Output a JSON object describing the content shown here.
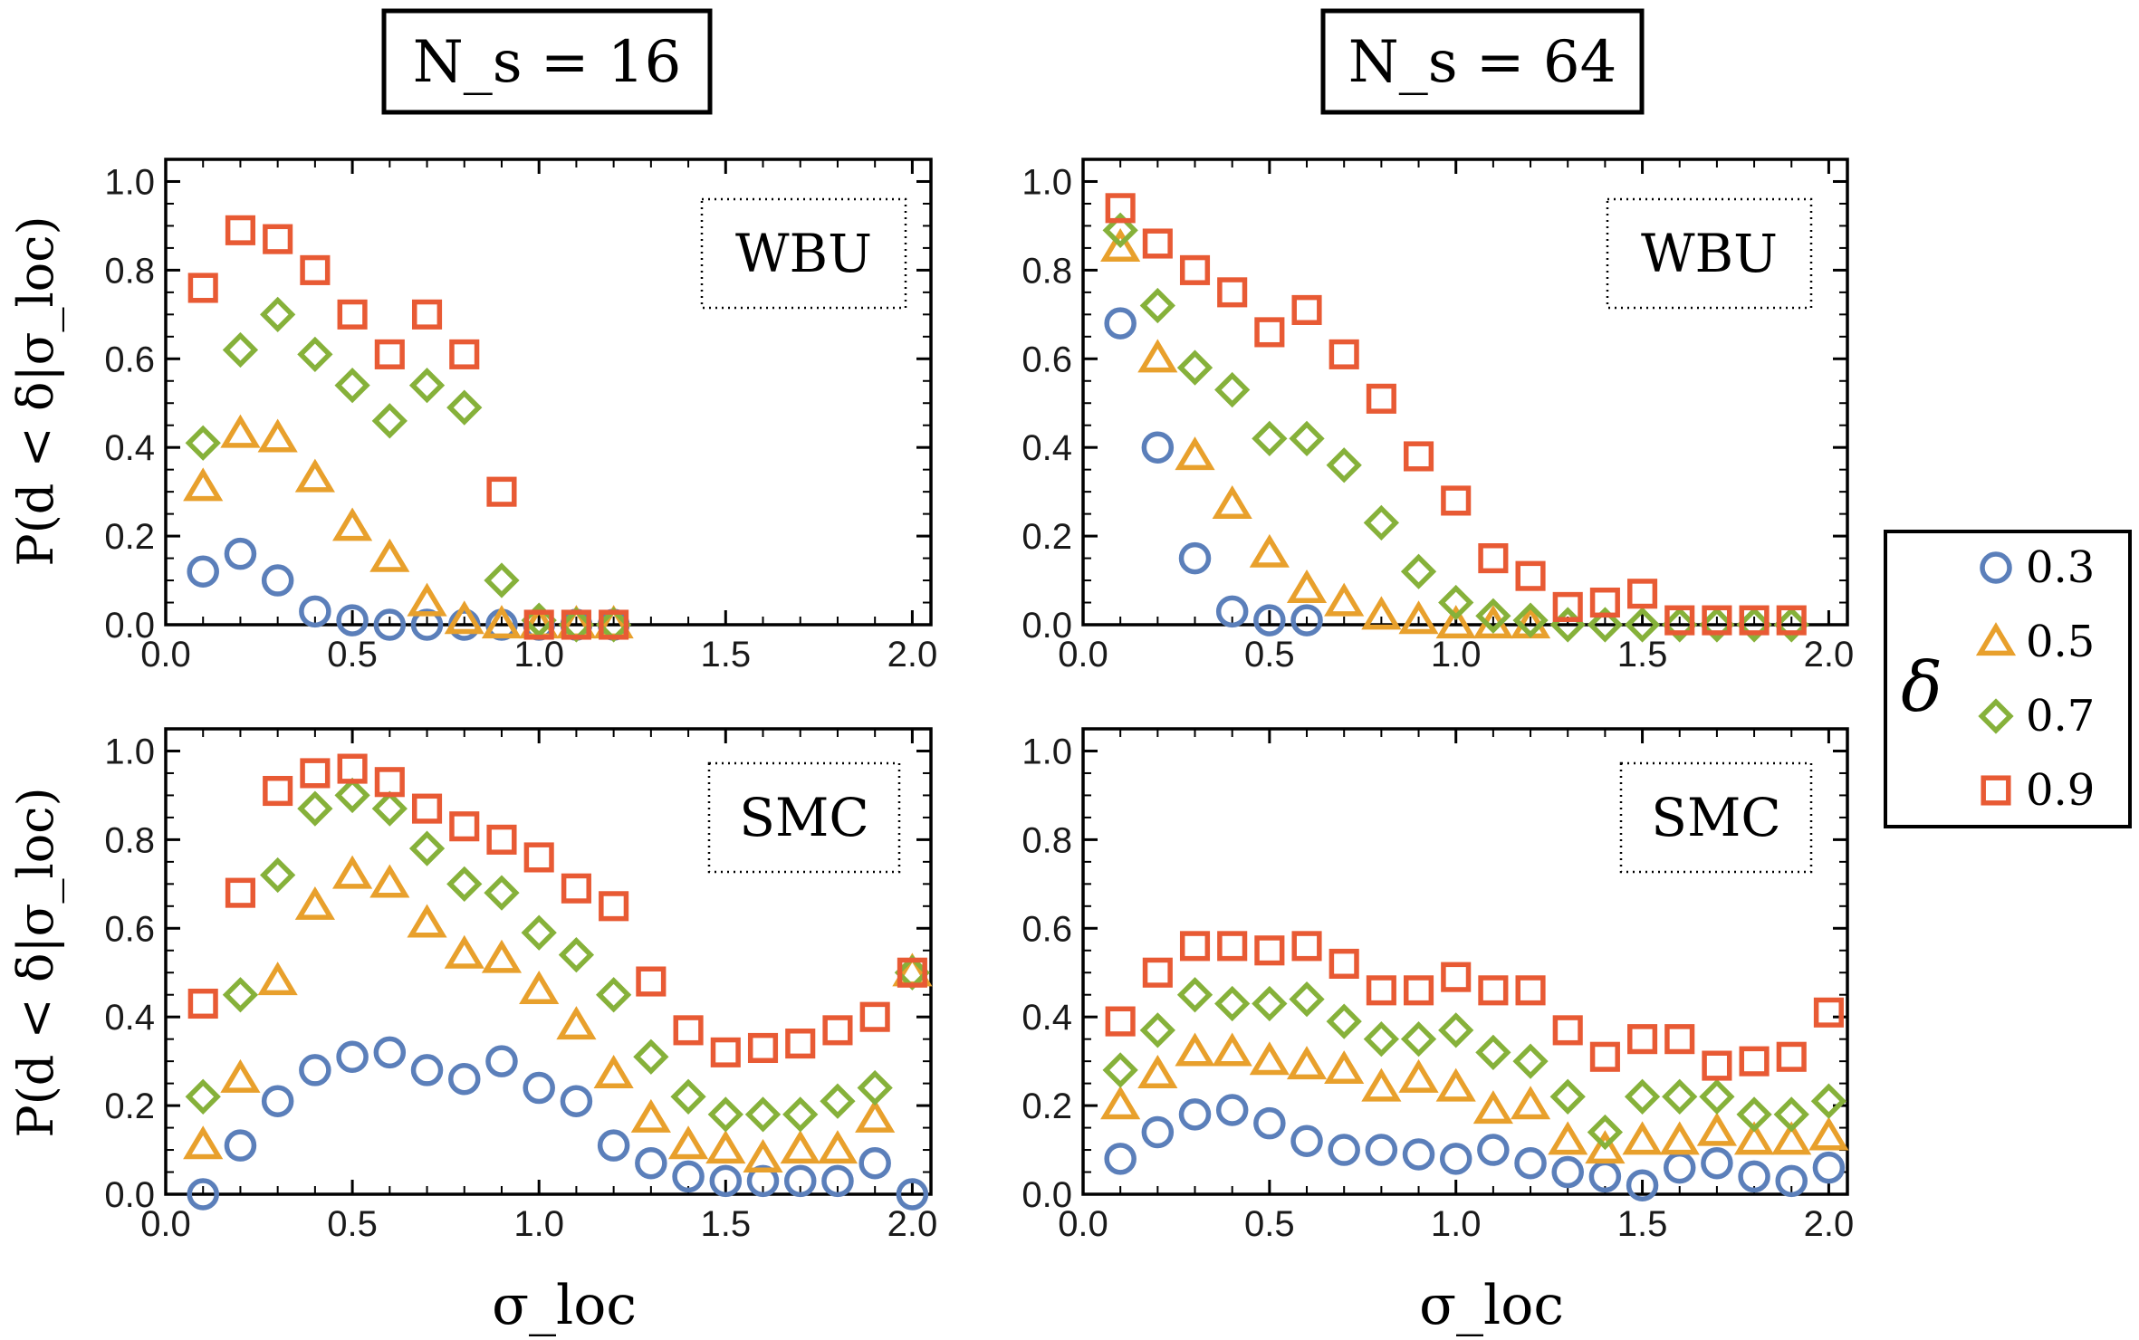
{
  "column_titles": [
    "N_s = 16",
    "N_s = 64"
  ],
  "ylabel": "P(d < δ|σ_loc)",
  "xlabel": "σ_loc",
  "legend": {
    "title": "δ",
    "entries": [
      {
        "label": "0.3",
        "color": "#5b7fba",
        "marker": "circle"
      },
      {
        "label": "0.5",
        "color": "#e8a02c",
        "marker": "triangle"
      },
      {
        "label": "0.7",
        "color": "#86b13a",
        "marker": "diamond"
      },
      {
        "label": "0.9",
        "color": "#e85a34",
        "marker": "square"
      }
    ]
  },
  "chart_data": [
    {
      "type": "scatter",
      "panel": "top-left",
      "column": "N_s = 16",
      "annotation": "WBU",
      "xlim": [
        0,
        2.05
      ],
      "ylim": [
        0,
        1.05
      ],
      "xticks": [
        "0.0",
        "0.5",
        "1.0",
        "1.5",
        "2.0"
      ],
      "yticks": [
        "0.0",
        "0.2",
        "0.4",
        "0.6",
        "0.8",
        "1.0"
      ],
      "series": [
        {
          "name": "0.3",
          "x": [
            0.1,
            0.2,
            0.3,
            0.4,
            0.5,
            0.6,
            0.7,
            0.8,
            0.9,
            1.0,
            1.1,
            1.2
          ],
          "y": [
            0.12,
            0.16,
            0.1,
            0.03,
            0.01,
            0.0,
            0.0,
            0.0,
            0.0,
            0.0,
            0.0,
            0.0
          ]
        },
        {
          "name": "0.5",
          "x": [
            0.1,
            0.2,
            0.3,
            0.4,
            0.5,
            0.6,
            0.7,
            0.8,
            0.9,
            1.0,
            1.1,
            1.2
          ],
          "y": [
            0.31,
            0.43,
            0.42,
            0.33,
            0.22,
            0.15,
            0.05,
            0.01,
            0.0,
            0.0,
            0.0,
            0.0
          ]
        },
        {
          "name": "0.7",
          "x": [
            0.1,
            0.2,
            0.3,
            0.4,
            0.5,
            0.6,
            0.7,
            0.8,
            0.9,
            1.0,
            1.1,
            1.2
          ],
          "y": [
            0.41,
            0.62,
            0.7,
            0.61,
            0.54,
            0.46,
            0.54,
            0.49,
            0.1,
            0.01,
            0.0,
            0.0
          ]
        },
        {
          "name": "0.9",
          "x": [
            0.1,
            0.2,
            0.3,
            0.4,
            0.5,
            0.6,
            0.7,
            0.8,
            0.9,
            1.0,
            1.1,
            1.2
          ],
          "y": [
            0.76,
            0.89,
            0.87,
            0.8,
            0.7,
            0.61,
            0.7,
            0.61,
            0.3,
            0.0,
            0.0,
            0.0
          ]
        }
      ]
    },
    {
      "type": "scatter",
      "panel": "top-right",
      "column": "N_s = 64",
      "annotation": "WBU",
      "xlim": [
        0,
        2.05
      ],
      "ylim": [
        0,
        1.05
      ],
      "xticks": [
        "0.0",
        "0.5",
        "1.0",
        "1.5",
        "2.0"
      ],
      "yticks": [
        "0.0",
        "0.2",
        "0.4",
        "0.6",
        "0.8",
        "1.0"
      ],
      "series": [
        {
          "name": "0.3",
          "x": [
            0.1,
            0.2,
            0.3,
            0.4,
            0.5,
            0.6
          ],
          "y": [
            0.68,
            0.4,
            0.15,
            0.03,
            0.01,
            0.01
          ]
        },
        {
          "name": "0.5",
          "x": [
            0.1,
            0.2,
            0.3,
            0.4,
            0.5,
            0.6,
            0.7,
            0.8,
            0.9,
            1.0,
            1.1,
            1.2
          ],
          "y": [
            0.85,
            0.6,
            0.38,
            0.27,
            0.16,
            0.08,
            0.05,
            0.02,
            0.01,
            0.0,
            0.0,
            0.0
          ]
        },
        {
          "name": "0.7",
          "x": [
            0.1,
            0.2,
            0.3,
            0.4,
            0.5,
            0.6,
            0.7,
            0.8,
            0.9,
            1.0,
            1.1,
            1.2,
            1.3,
            1.4,
            1.5,
            1.6,
            1.7,
            1.8,
            1.9
          ],
          "y": [
            0.89,
            0.72,
            0.58,
            0.53,
            0.42,
            0.42,
            0.36,
            0.23,
            0.12,
            0.05,
            0.02,
            0.01,
            0.0,
            0.0,
            0.0,
            0.0,
            0.0,
            0.0,
            0.0
          ]
        },
        {
          "name": "0.9",
          "x": [
            0.1,
            0.2,
            0.3,
            0.4,
            0.5,
            0.6,
            0.7,
            0.8,
            0.9,
            1.0,
            1.1,
            1.2,
            1.3,
            1.4,
            1.5,
            1.6,
            1.7,
            1.8,
            1.9
          ],
          "y": [
            0.94,
            0.86,
            0.8,
            0.75,
            0.66,
            0.71,
            0.61,
            0.51,
            0.38,
            0.28,
            0.15,
            0.11,
            0.04,
            0.05,
            0.07,
            0.01,
            0.01,
            0.01,
            0.01
          ]
        }
      ]
    },
    {
      "type": "scatter",
      "panel": "bottom-left",
      "column": "N_s = 16",
      "annotation": "SMC",
      "xlim": [
        0,
        2.05
      ],
      "ylim": [
        0,
        1.05
      ],
      "xticks": [
        "0.0",
        "0.5",
        "1.0",
        "1.5",
        "2.0"
      ],
      "yticks": [
        "0.0",
        "0.2",
        "0.4",
        "0.6",
        "0.8",
        "1.0"
      ],
      "series": [
        {
          "name": "0.3",
          "x": [
            0.1,
            0.2,
            0.3,
            0.4,
            0.5,
            0.6,
            0.7,
            0.8,
            0.9,
            1.0,
            1.1,
            1.2,
            1.3,
            1.4,
            1.5,
            1.6,
            1.7,
            1.8,
            1.9,
            2.0
          ],
          "y": [
            0.0,
            0.11,
            0.21,
            0.28,
            0.31,
            0.32,
            0.28,
            0.26,
            0.3,
            0.24,
            0.21,
            0.11,
            0.07,
            0.04,
            0.03,
            0.03,
            0.03,
            0.03,
            0.07,
            0.0
          ]
        },
        {
          "name": "0.5",
          "x": [
            0.1,
            0.2,
            0.3,
            0.4,
            0.5,
            0.6,
            0.7,
            0.8,
            0.9,
            1.0,
            1.1,
            1.2,
            1.3,
            1.4,
            1.5,
            1.6,
            1.7,
            1.8,
            1.9,
            2.0
          ],
          "y": [
            0.11,
            0.26,
            0.48,
            0.65,
            0.72,
            0.7,
            0.61,
            0.54,
            0.53,
            0.46,
            0.38,
            0.27,
            0.17,
            0.11,
            0.1,
            0.08,
            0.1,
            0.1,
            0.17,
            0.5
          ]
        },
        {
          "name": "0.7",
          "x": [
            0.1,
            0.2,
            0.3,
            0.4,
            0.5,
            0.6,
            0.7,
            0.8,
            0.9,
            1.0,
            1.1,
            1.2,
            1.3,
            1.4,
            1.5,
            1.6,
            1.7,
            1.8,
            1.9,
            2.0
          ],
          "y": [
            0.22,
            0.45,
            0.72,
            0.87,
            0.9,
            0.87,
            0.78,
            0.7,
            0.68,
            0.59,
            0.54,
            0.45,
            0.31,
            0.22,
            0.18,
            0.18,
            0.18,
            0.21,
            0.24,
            0.5
          ]
        },
        {
          "name": "0.9",
          "x": [
            0.1,
            0.2,
            0.3,
            0.4,
            0.5,
            0.6,
            0.7,
            0.8,
            0.9,
            1.0,
            1.1,
            1.2,
            1.3,
            1.4,
            1.5,
            1.6,
            1.7,
            1.8,
            1.9,
            2.0
          ],
          "y": [
            0.43,
            0.68,
            0.91,
            0.95,
            0.96,
            0.93,
            0.87,
            0.83,
            0.8,
            0.76,
            0.69,
            0.65,
            0.48,
            0.37,
            0.32,
            0.33,
            0.34,
            0.37,
            0.4,
            0.5
          ]
        }
      ]
    },
    {
      "type": "scatter",
      "panel": "bottom-right",
      "column": "N_s = 64",
      "annotation": "SMC",
      "xlim": [
        0,
        2.05
      ],
      "ylim": [
        0,
        1.05
      ],
      "xticks": [
        "0.0",
        "0.5",
        "1.0",
        "1.5",
        "2.0"
      ],
      "yticks": [
        "0.0",
        "0.2",
        "0.4",
        "0.6",
        "0.8",
        "1.0"
      ],
      "series": [
        {
          "name": "0.3",
          "x": [
            0.1,
            0.2,
            0.3,
            0.4,
            0.5,
            0.6,
            0.7,
            0.8,
            0.9,
            1.0,
            1.1,
            1.2,
            1.3,
            1.4,
            1.5,
            1.6,
            1.7,
            1.8,
            1.9,
            2.0
          ],
          "y": [
            0.08,
            0.14,
            0.18,
            0.19,
            0.16,
            0.12,
            0.1,
            0.1,
            0.09,
            0.08,
            0.1,
            0.07,
            0.05,
            0.04,
            0.02,
            0.06,
            0.07,
            0.04,
            0.03,
            0.06
          ]
        },
        {
          "name": "0.5",
          "x": [
            0.1,
            0.2,
            0.3,
            0.4,
            0.5,
            0.6,
            0.7,
            0.8,
            0.9,
            1.0,
            1.1,
            1.2,
            1.3,
            1.4,
            1.5,
            1.6,
            1.7,
            1.8,
            1.9,
            2.0
          ],
          "y": [
            0.2,
            0.27,
            0.32,
            0.32,
            0.3,
            0.29,
            0.28,
            0.24,
            0.26,
            0.24,
            0.19,
            0.2,
            0.12,
            0.1,
            0.12,
            0.12,
            0.14,
            0.12,
            0.12,
            0.13
          ]
        },
        {
          "name": "0.7",
          "x": [
            0.1,
            0.2,
            0.3,
            0.4,
            0.5,
            0.6,
            0.7,
            0.8,
            0.9,
            1.0,
            1.1,
            1.2,
            1.3,
            1.4,
            1.5,
            1.6,
            1.7,
            1.8,
            1.9,
            2.0
          ],
          "y": [
            0.28,
            0.37,
            0.45,
            0.43,
            0.43,
            0.44,
            0.39,
            0.35,
            0.35,
            0.37,
            0.32,
            0.3,
            0.22,
            0.14,
            0.22,
            0.22,
            0.22,
            0.18,
            0.18,
            0.21
          ]
        },
        {
          "name": "0.9",
          "x": [
            0.1,
            0.2,
            0.3,
            0.4,
            0.5,
            0.6,
            0.7,
            0.8,
            0.9,
            1.0,
            1.1,
            1.2,
            1.3,
            1.4,
            1.5,
            1.6,
            1.7,
            1.8,
            1.9,
            2.0
          ],
          "y": [
            0.39,
            0.5,
            0.56,
            0.56,
            0.55,
            0.56,
            0.52,
            0.46,
            0.46,
            0.49,
            0.46,
            0.46,
            0.37,
            0.31,
            0.35,
            0.35,
            0.29,
            0.3,
            0.31,
            0.41
          ]
        }
      ]
    }
  ]
}
